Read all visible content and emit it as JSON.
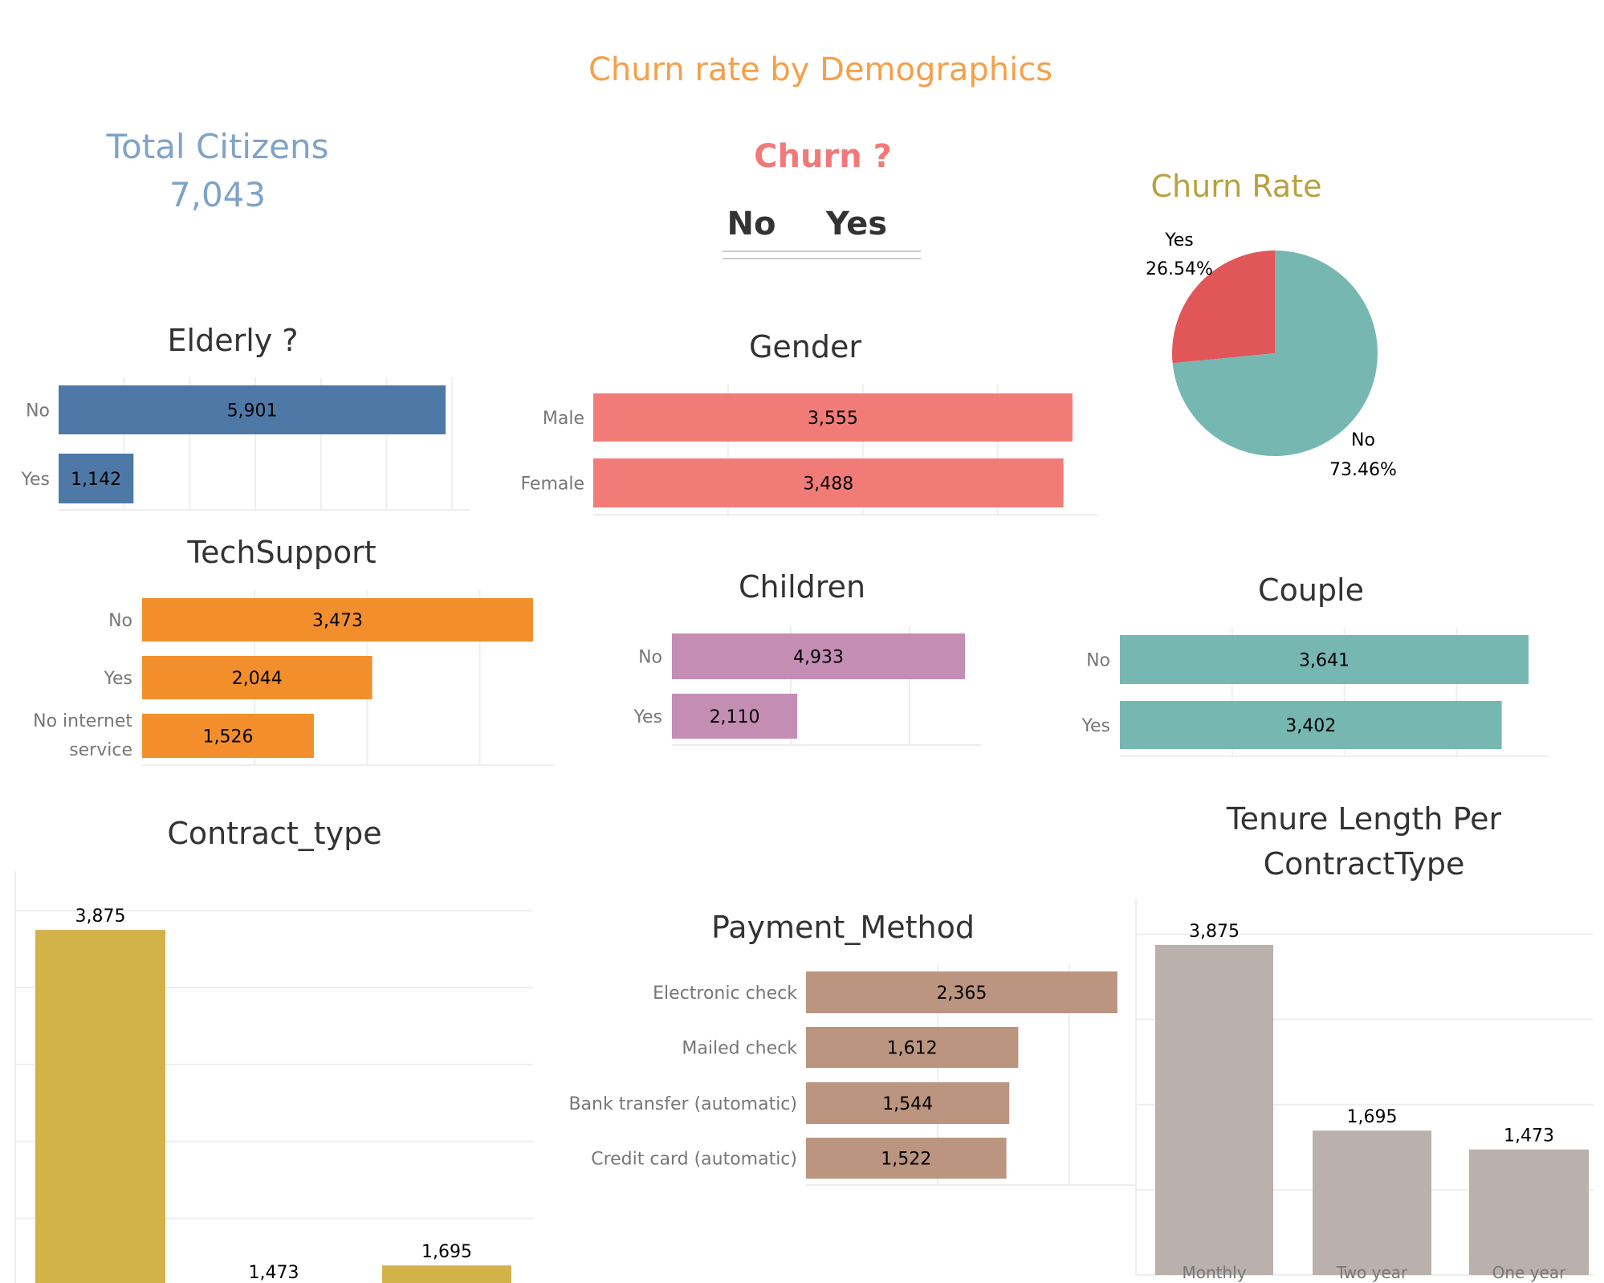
{
  "header": {
    "title": "Churn rate by  Demographics"
  },
  "kpi": {
    "label": "Total Citizens",
    "value": "7,043"
  },
  "churn_filter": {
    "title": "Churn ?",
    "options": [
      "No",
      "Yes"
    ]
  },
  "colors": {
    "title": "#f5a04a",
    "kpi": "#7fa3c8",
    "churn_filter": "#f07a7a",
    "elderly": "#4e79a7",
    "gender": "#f17c77",
    "techsupport": "#f28e2b",
    "children": "#c38db4",
    "couple": "#76b7b2",
    "contract": "#d4b24a",
    "payment": "#bb957f",
    "tenure": "#bab0ac",
    "pie_yes": "#e15759",
    "pie_no": "#76b7b2"
  },
  "chart_data": [
    {
      "id": "pie",
      "type": "pie",
      "title": "Churn Rate",
      "slices": [
        {
          "label": "Yes",
          "value": 26.54,
          "display": "26.54%"
        },
        {
          "label": "No",
          "value": 73.46,
          "display": "73.46%"
        }
      ]
    },
    {
      "id": "elderly",
      "type": "bar",
      "orientation": "horizontal",
      "title": "Elderly ?",
      "categories": [
        "No",
        "Yes"
      ],
      "values": [
        5901,
        1142
      ],
      "labels": [
        "5,901",
        "1,142"
      ],
      "grid": true,
      "grid_step": 1000
    },
    {
      "id": "gender",
      "type": "bar",
      "orientation": "horizontal",
      "title": "Gender",
      "categories": [
        "Male",
        "Female"
      ],
      "values": [
        3555,
        3488
      ],
      "labels": [
        "3,555",
        "3,488"
      ],
      "grid": true,
      "grid_step": 1000
    },
    {
      "id": "techsupport",
      "type": "bar",
      "orientation": "horizontal",
      "title": "TechSupport",
      "categories": [
        "No",
        "Yes",
        "No internet service"
      ],
      "values": [
        3473,
        2044,
        1526
      ],
      "labels": [
        "3,473",
        "2,044",
        "1,526"
      ],
      "grid": true,
      "grid_step": 1000
    },
    {
      "id": "children",
      "type": "bar",
      "orientation": "horizontal",
      "title": "Children",
      "categories": [
        "No",
        "Yes"
      ],
      "values": [
        4933,
        2110
      ],
      "labels": [
        "4,933",
        "2,110"
      ],
      "grid": true,
      "grid_step": 2000
    },
    {
      "id": "couple",
      "type": "bar",
      "orientation": "horizontal",
      "title": "Couple",
      "categories": [
        "No",
        "Yes"
      ],
      "values": [
        3641,
        3402
      ],
      "labels": [
        "3,641",
        "3,402"
      ],
      "grid": true,
      "grid_step": 1000
    },
    {
      "id": "contract",
      "type": "bar",
      "orientation": "vertical",
      "title": "Contract_type",
      "categories": [
        "",
        "",
        ""
      ],
      "values": [
        3875,
        1473,
        1695
      ],
      "labels": [
        "3,875",
        "1,473",
        "1,695"
      ],
      "grid": true,
      "grid_step": 500
    },
    {
      "id": "payment",
      "type": "bar",
      "orientation": "horizontal",
      "title": "Payment_Method",
      "categories": [
        "Electronic check",
        "Mailed check",
        "Bank transfer (automatic)",
        "Credit card (automatic)"
      ],
      "values": [
        2365,
        1612,
        1544,
        1522
      ],
      "labels": [
        "2,365",
        "1,612",
        "1,544",
        "1,522"
      ],
      "grid": true,
      "grid_step": 1000
    },
    {
      "id": "tenure",
      "type": "bar",
      "orientation": "vertical",
      "title": "Tenure Length Per ContractType",
      "categories": [
        "Monthly",
        "Two year",
        "One year"
      ],
      "values": [
        3875,
        1695,
        1473
      ],
      "labels": [
        "3,875",
        "1,695",
        "1,473"
      ],
      "grid": true,
      "grid_step": 1000
    }
  ]
}
